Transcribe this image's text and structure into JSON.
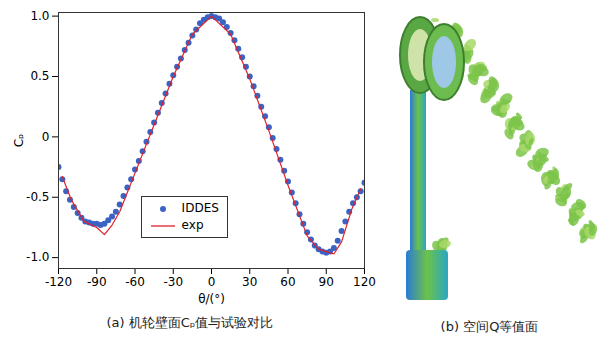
{
  "chart_data": {
    "type": "scatter",
    "caption": "(a) 机轮壁面Cₚ值与试验对比",
    "x_label": "θ/(°)",
    "y_label": "Cₚ",
    "xlim": [
      -120,
      120
    ],
    "xticks": [
      -120,
      -90,
      -60,
      -30,
      0,
      30,
      60,
      90,
      120
    ],
    "ylim": [
      -1.09,
      1.03
    ],
    "yticks": [
      {
        "value": -1.0,
        "label": "-1.0"
      },
      {
        "value": -0.5,
        "label": "-0.5"
      },
      0,
      {
        "value": 0.5,
        "label": "0.5"
      },
      {
        "value": 1.0,
        "label": "1.0"
      }
    ],
    "legend": "lower center",
    "series": [
      {
        "name": "IDDES",
        "type": "scatter",
        "marker": "circle",
        "color": "#3b63c4",
        "x": [
          -120,
          -117,
          -114,
          -111,
          -108,
          -105,
          -102,
          -99,
          -96,
          -93,
          -90,
          -87,
          -84,
          -81,
          -78,
          -75,
          -72,
          -69,
          -66,
          -63,
          -60,
          -57,
          -54,
          -51,
          -48,
          -45,
          -42,
          -39,
          -36,
          -33,
          -30,
          -27,
          -24,
          -21,
          -18,
          -15,
          -12,
          -9,
          -6,
          -3,
          0,
          3,
          6,
          9,
          12,
          15,
          18,
          21,
          24,
          27,
          30,
          33,
          36,
          39,
          42,
          45,
          48,
          51,
          54,
          57,
          60,
          63,
          66,
          69,
          72,
          75,
          78,
          81,
          84,
          87,
          90,
          93,
          96,
          99,
          102,
          105,
          108,
          111,
          114,
          117,
          120
        ],
        "values": [
          -0.25,
          -0.35,
          -0.45,
          -0.52,
          -0.58,
          -0.63,
          -0.67,
          -0.7,
          -0.71,
          -0.72,
          -0.72,
          -0.73,
          -0.72,
          -0.69,
          -0.66,
          -0.62,
          -0.56,
          -0.49,
          -0.42,
          -0.35,
          -0.27,
          -0.2,
          -0.12,
          -0.04,
          0.04,
          0.12,
          0.2,
          0.28,
          0.36,
          0.44,
          0.51,
          0.58,
          0.65,
          0.72,
          0.78,
          0.84,
          0.89,
          0.94,
          0.97,
          0.99,
          1.0,
          0.99,
          0.98,
          0.95,
          0.91,
          0.86,
          0.8,
          0.73,
          0.66,
          0.58,
          0.5,
          0.42,
          0.34,
          0.25,
          0.17,
          0.08,
          -0.01,
          -0.1,
          -0.19,
          -0.28,
          -0.37,
          -0.46,
          -0.55,
          -0.64,
          -0.72,
          -0.79,
          -0.85,
          -0.9,
          -0.93,
          -0.95,
          -0.96,
          -0.95,
          -0.92,
          -0.86,
          -0.78,
          -0.7,
          -0.62,
          -0.55,
          -0.5,
          -0.45,
          -0.38
        ]
      },
      {
        "name": "exp",
        "type": "line",
        "line_style": "solid",
        "color": "#e0202a",
        "x": [
          -117,
          -110,
          -100,
          -90,
          -84,
          -78,
          -72,
          -60,
          -45,
          -30,
          -15,
          0,
          15,
          30,
          45,
          60,
          75,
          84,
          90,
          96,
          102,
          110,
          117
        ],
        "values": [
          -0.33,
          -0.52,
          -0.7,
          -0.75,
          -0.81,
          -0.73,
          -0.62,
          -0.3,
          0.1,
          0.5,
          0.85,
          1.0,
          0.85,
          0.48,
          0.05,
          -0.4,
          -0.82,
          -0.93,
          -0.95,
          -0.97,
          -0.87,
          -0.6,
          -0.43
        ]
      }
    ]
  },
  "figure": {
    "caption": "(b) 空间Q等值面"
  }
}
